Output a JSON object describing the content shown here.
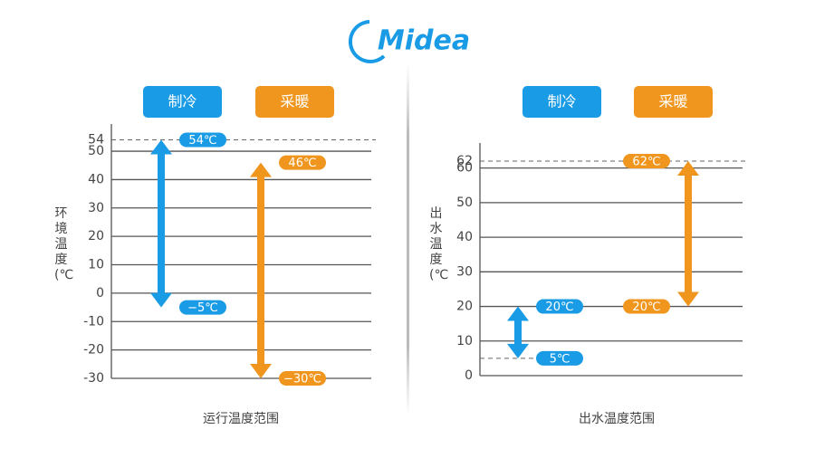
{
  "logo": "Midea",
  "chart_data": [
    {
      "type": "range",
      "title": "运行温度范围",
      "ylabel": "环境温度(℃)",
      "ylim": [
        -30,
        54
      ],
      "yticks": [
        54,
        50,
        40,
        30,
        20,
        10,
        0,
        -10,
        -20,
        -30
      ],
      "series": [
        {
          "name": "制冷",
          "color": "#1a9be6",
          "values": [
            -5,
            54
          ],
          "value_labels": [
            "−5℃",
            "54℃"
          ]
        },
        {
          "name": "采暖",
          "color": "#f0961e",
          "values": [
            -30,
            46
          ],
          "value_labels": [
            "−30℃",
            "46℃"
          ]
        }
      ]
    },
    {
      "type": "range",
      "title": "出水温度范围",
      "ylabel": "出水温度(℃)",
      "ylim": [
        0,
        62
      ],
      "yticks": [
        62,
        60,
        50,
        40,
        30,
        20,
        10,
        0
      ],
      "series": [
        {
          "name": "制冷",
          "color": "#1a9be6",
          "values": [
            5,
            20
          ],
          "value_labels": [
            "5℃",
            "20℃"
          ]
        },
        {
          "name": "采暖",
          "color": "#f0961e",
          "values": [
            20,
            62
          ],
          "value_labels": [
            "20℃",
            "62℃"
          ]
        }
      ]
    }
  ]
}
